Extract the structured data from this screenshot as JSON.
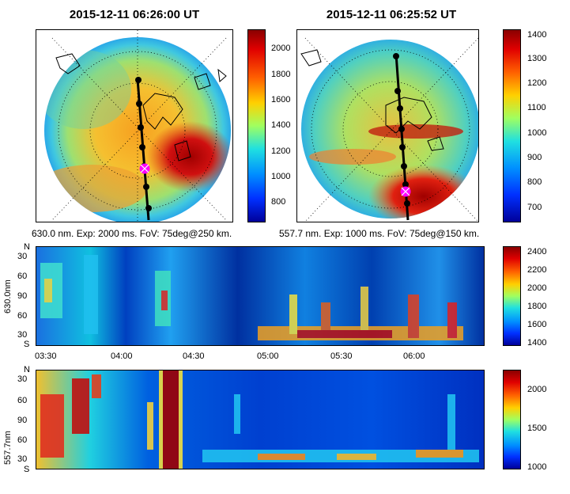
{
  "panels": {
    "left_title": "2015-12-11 06:26:00 UT",
    "right_title": "2015-12-11 06:25:52 UT",
    "left_caption": "630.0 nm. Exp: 2000 ms. FoV: 75deg@250 km.",
    "right_caption": "557.7 nm. Exp: 1000 ms. FoV: 75deg@150 km."
  },
  "colorbars": {
    "left_ticks": [
      "2000",
      "1800",
      "1600",
      "1400",
      "1200",
      "1000",
      "800"
    ],
    "right_ticks": [
      "1400",
      "1300",
      "1200",
      "1100",
      "1000",
      "900",
      "800",
      "700"
    ],
    "keo630_ticks": [
      "2400",
      "2200",
      "2000",
      "1800",
      "1600",
      "1400"
    ],
    "keo557_ticks": [
      "2000",
      "1500",
      "1000"
    ]
  },
  "keograms": {
    "top_ylabel": "630.0nm",
    "bottom_ylabel": "557.7nm",
    "yticks": [
      "N",
      "30",
      "60",
      "90",
      "60",
      "30",
      "S"
    ],
    "xticks": [
      "03:30",
      "04:00",
      "04:30",
      "05:00",
      "05:30",
      "06:00"
    ]
  },
  "colors": {
    "jet_low": "#00008f",
    "jet_mid": "#00ffff",
    "jet_high": "#800000",
    "marker_magenta": "#ff00ff"
  },
  "chart_data": [
    {
      "type": "heatmap",
      "title": "2015-12-11 06:26:00 UT",
      "subtitle": "630.0 nm. Exp: 2000 ms. FoV: 75deg@250 km.",
      "colorbar_range": [
        650,
        2150
      ],
      "colorbar_ticks": [
        800,
        1000,
        1200,
        1400,
        1600,
        1800,
        2000
      ],
      "track_points": 7,
      "marked_point": "magenta cross"
    },
    {
      "type": "heatmap",
      "title": "2015-12-11 06:25:52 UT",
      "subtitle": "557.7 nm. Exp: 1000 ms. FoV: 75deg@150 km.",
      "colorbar_range": [
        650,
        1420
      ],
      "colorbar_ticks": [
        700,
        800,
        900,
        1000,
        1100,
        1200,
        1300,
        1400
      ],
      "track_points": 8,
      "marked_point": "magenta cross"
    },
    {
      "type": "heatmap",
      "ylabel": "630.0nm",
      "y_ticks": [
        "N",
        "30",
        "60",
        "90",
        "60",
        "30",
        "S"
      ],
      "x_ticks": [
        "03:30",
        "04:00",
        "04:30",
        "05:00",
        "05:30",
        "06:00"
      ],
      "colorbar_range": [
        1350,
        2450
      ],
      "colorbar_ticks": [
        1400,
        1600,
        1800,
        2000,
        2200,
        2400
      ]
    },
    {
      "type": "heatmap",
      "ylabel": "557.7nm",
      "y_ticks": [
        "N",
        "30",
        "60",
        "90",
        "60",
        "30",
        "S"
      ],
      "colorbar_range": [
        950,
        2250
      ],
      "colorbar_ticks": [
        1000,
        1500,
        2000
      ]
    }
  ]
}
